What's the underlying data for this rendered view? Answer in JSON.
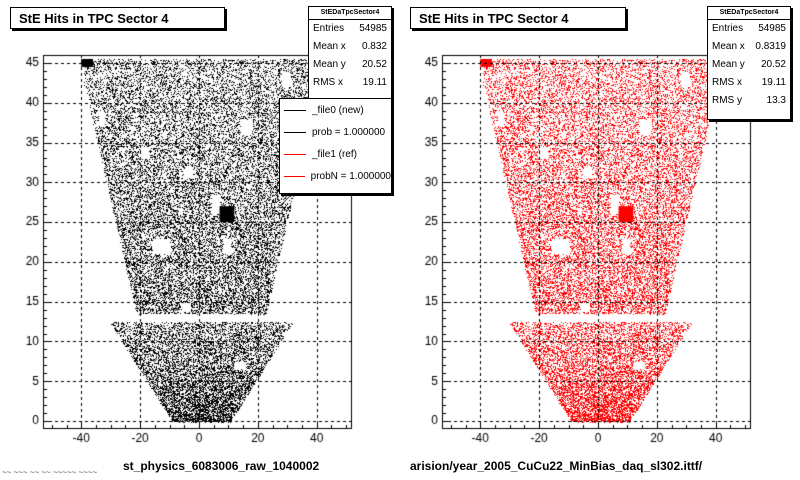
{
  "chart_data": [
    {
      "type": "scatter",
      "title": "StE Hits in TPC Sector 4",
      "xlabel": "st_physics_6083006_raw_1040002",
      "ylabel": "",
      "xlim": [
        -53,
        52
      ],
      "ylim": [
        -1,
        46
      ],
      "x_ticks": [
        "-40",
        "-20",
        "0",
        "20",
        "40"
      ],
      "y_ticks": [
        "0",
        "5",
        "10",
        "15",
        "20",
        "25",
        "30",
        "35",
        "40",
        "45"
      ],
      "grid": true,
      "marker_color": "#000000",
      "stats": {
        "name": "StEDaTpcSector4",
        "rows": [
          {
            "label": "Entries",
            "value": "54985"
          },
          {
            "label": "Mean x",
            "value": "0.832"
          },
          {
            "label": "Mean y",
            "value": "20.52"
          },
          {
            "label": "RMS x",
            "value": "19.11"
          }
        ]
      },
      "legend": [
        {
          "text": "_file0 (new)",
          "color": "#000000"
        },
        {
          "text": "prob = 1.000000",
          "color": "#000000"
        },
        {
          "text": "_file1 (ref)",
          "color": "#ff0000"
        },
        {
          "text": "probN = 1.000000",
          "color": "#ff0000"
        }
      ],
      "series": [
        {
          "values": "dense hit distribution over TPC sector 4 pad rows (x ≈ -45..45, y ≈ 0..45)"
        }
      ]
    },
    {
      "type": "scatter",
      "title": "StE Hits in TPC Sector 4",
      "xlabel": "arision/year_2005_CuCu22_MinBias_daq_sl302.ittf/",
      "ylabel": "",
      "xlim": [
        -53,
        52
      ],
      "ylim": [
        -1,
        46
      ],
      "x_ticks": [
        "-40",
        "-20",
        "0",
        "20",
        "40"
      ],
      "y_ticks": [
        "0",
        "5",
        "10",
        "15",
        "20",
        "25",
        "30",
        "35",
        "40",
        "45"
      ],
      "grid": true,
      "marker_color": "#ff0000",
      "stats": {
        "name": "StEDaTpcSector4",
        "rows": [
          {
            "label": "Entries",
            "value": "54985"
          },
          {
            "label": "Mean x",
            "value": "0.8319"
          },
          {
            "label": "Mean y",
            "value": "20.52"
          },
          {
            "label": "RMS x",
            "value": "19.11"
          },
          {
            "label": "RMS y",
            "value": "13.3"
          }
        ]
      },
      "series": [
        {
          "values": "dense hit distribution over TPC sector 4 pad rows (x ≈ -45..45, y ≈ 0..45)"
        }
      ]
    }
  ],
  "corner_text": "~~ ~~~ ~~ ~~ ~~~~~ ~~~~"
}
